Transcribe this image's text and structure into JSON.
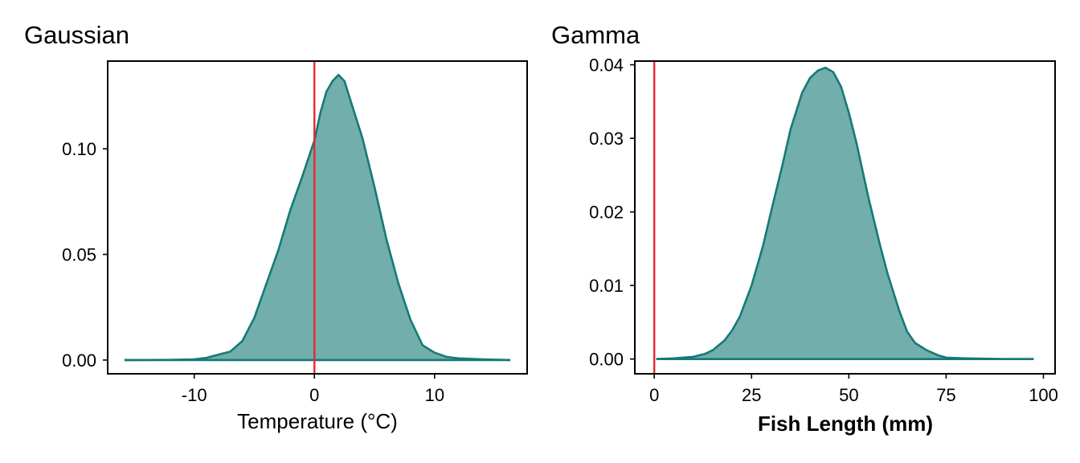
{
  "chart_data": [
    {
      "type": "area",
      "title": "Gaussian",
      "xlabel": "Temperature (°C)",
      "ylabel": "",
      "xlim": [
        -17.2,
        17.7
      ],
      "ylim": [
        -0.0065,
        0.1415
      ],
      "x_ticks": [
        -10,
        0,
        10
      ],
      "x_tick_labels": [
        "-10",
        "0",
        "10"
      ],
      "y_ticks": [
        0.0,
        0.05,
        0.1
      ],
      "y_tick_labels": [
        "0.00",
        "0.05",
        "0.10"
      ],
      "vline": 0,
      "grid": false,
      "series": [
        {
          "x": [
            -15.8,
            -12,
            -10,
            -9,
            -8,
            -7,
            -6,
            -5,
            -4,
            -3,
            -2,
            -1,
            0,
            0.5,
            1,
            1.5,
            2,
            2.5,
            3,
            4,
            5,
            6,
            7,
            8,
            9,
            10,
            11,
            12,
            14,
            16.3
          ],
          "y": [
            0,
            0.0001,
            0.0003,
            0.001,
            0.0025,
            0.004,
            0.009,
            0.02,
            0.036,
            0.052,
            0.071,
            0.087,
            0.104,
            0.117,
            0.127,
            0.132,
            0.135,
            0.132,
            0.123,
            0.105,
            0.082,
            0.057,
            0.036,
            0.019,
            0.007,
            0.0035,
            0.0015,
            0.0008,
            0.0003,
            0
          ]
        }
      ]
    },
    {
      "type": "area",
      "title": "Gamma",
      "xlabel": "Fish Length (mm)",
      "ylabel": "",
      "xlim": [
        -5,
        103
      ],
      "ylim": [
        -0.002,
        0.0405
      ],
      "x_ticks": [
        0,
        25,
        50,
        75,
        100
      ],
      "x_tick_labels": [
        "0",
        "25",
        "50",
        "75",
        "100"
      ],
      "y_ticks": [
        0.0,
        0.01,
        0.02,
        0.03,
        0.04
      ],
      "y_tick_labels": [
        "0.00",
        "0.01",
        "0.02",
        "0.03",
        "0.04"
      ],
      "vline": 0,
      "grid": false,
      "series": [
        {
          "x": [
            0.5,
            5,
            10,
            13,
            15,
            18,
            20,
            22,
            25,
            28,
            30,
            33,
            35,
            38,
            40,
            42,
            44,
            46,
            48,
            50,
            52,
            55,
            58,
            60,
            63,
            65,
            67,
            70,
            73,
            75,
            80,
            90,
            97.5
          ],
          "y": [
            0,
            0.0001,
            0.0003,
            0.0007,
            0.0012,
            0.0025,
            0.0039,
            0.0058,
            0.01,
            0.0155,
            0.02,
            0.0265,
            0.0312,
            0.0362,
            0.0382,
            0.0392,
            0.0396,
            0.039,
            0.037,
            0.0335,
            0.0293,
            0.022,
            0.0155,
            0.0115,
            0.0065,
            0.0037,
            0.0022,
            0.0012,
            0.0005,
            0.0002,
            0.0001,
            0,
            0
          ]
        }
      ]
    }
  ]
}
